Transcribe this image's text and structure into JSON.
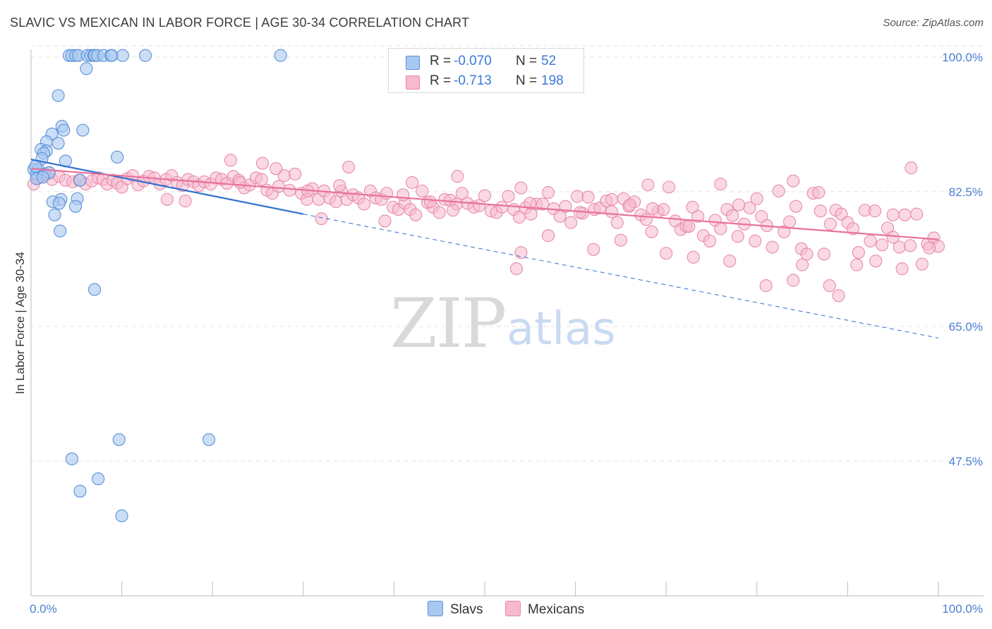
{
  "title": "SLAVIC VS MEXICAN IN LABOR FORCE | AGE 30-34 CORRELATION CHART",
  "source": "Source: ZipAtlas.com",
  "watermark": {
    "zip": "ZIP",
    "atlas": "atlas"
  },
  "colors": {
    "slavs_fill": "#a9c8f0",
    "slavs_stroke": "#5b91d9",
    "slavs_line": "#2f6fd0",
    "mexicans_fill": "#f6b9cd",
    "mexicans_stroke": "#e88aa9",
    "mexicans_line": "#e8719b",
    "tick_text": "#4a7fd4",
    "grid": "#e3e3e3"
  },
  "legend": {
    "rows": [
      {
        "r_label": "R =",
        "r_value": "-0.070",
        "n_label": "N =",
        "n_value": "52"
      },
      {
        "r_label": "R =",
        "r_value": "-0.713",
        "n_label": "N =",
        "n_value": "198"
      }
    ]
  },
  "bottom_legend": {
    "slavs": "Slavs",
    "mexicans": "Mexicans"
  },
  "chart_data": {
    "type": "scatter",
    "title": "SLAVIC VS MEXICAN IN LABOR FORCE | AGE 30-34 CORRELATION CHART",
    "xlabel": "",
    "ylabel": "In Labor Force | Age 30-34",
    "xlim": [
      0,
      100
    ],
    "ylim": [
      30,
      101
    ],
    "x_tick_labels": [
      "0.0%",
      "100.0%"
    ],
    "y_ticks": [
      {
        "value": 100.0,
        "label": "100.0%"
      },
      {
        "value": 82.5,
        "label": "82.5%"
      },
      {
        "value": 65.0,
        "label": "65.0%"
      },
      {
        "value": 47.5,
        "label": "47.5%"
      }
    ],
    "series": [
      {
        "name": "Slavs",
        "r": -0.07,
        "n": 52,
        "trend": {
          "x0": 0,
          "y0": 86.7,
          "x1": 30,
          "y1": 79.6,
          "dashed_to_x": 100,
          "dashed_to_y": 63.5
        },
        "points": [
          [
            4.2,
            100.2
          ],
          [
            4.5,
            100.2
          ],
          [
            4.9,
            100.2
          ],
          [
            5.2,
            100.2
          ],
          [
            6.2,
            100.2
          ],
          [
            6.6,
            100.2
          ],
          [
            6.9,
            100.2
          ],
          [
            7.0,
            100.2
          ],
          [
            7.3,
            100.2
          ],
          [
            8.0,
            100.2
          ],
          [
            8.8,
            100.2
          ],
          [
            8.9,
            100.2
          ],
          [
            10.1,
            100.2
          ],
          [
            12.6,
            100.2
          ],
          [
            27.5,
            100.2
          ],
          [
            6.1,
            98.5
          ],
          [
            3.0,
            95.0
          ],
          [
            3.4,
            91.0
          ],
          [
            2.3,
            90.0
          ],
          [
            3.6,
            90.5
          ],
          [
            5.7,
            90.5
          ],
          [
            1.7,
            89.0
          ],
          [
            3.0,
            88.8
          ],
          [
            1.1,
            88.0
          ],
          [
            1.7,
            87.8
          ],
          [
            1.4,
            87.5
          ],
          [
            1.2,
            86.8
          ],
          [
            3.8,
            86.5
          ],
          [
            9.5,
            87.0
          ],
          [
            0.3,
            85.4
          ],
          [
            0.8,
            85.4
          ],
          [
            0.6,
            84.8
          ],
          [
            1.5,
            84.8
          ],
          [
            2.0,
            85.0
          ],
          [
            0.6,
            84.2
          ],
          [
            1.3,
            84.4
          ],
          [
            5.4,
            84.0
          ],
          [
            3.3,
            81.5
          ],
          [
            5.1,
            81.6
          ],
          [
            2.4,
            81.2
          ],
          [
            3.1,
            81.0
          ],
          [
            4.9,
            80.6
          ],
          [
            2.6,
            79.5
          ],
          [
            3.2,
            77.4
          ],
          [
            7.0,
            69.8
          ],
          [
            9.7,
            50.3
          ],
          [
            19.6,
            50.3
          ],
          [
            4.5,
            47.8
          ],
          [
            7.4,
            45.2
          ],
          [
            5.4,
            43.6
          ],
          [
            10.0,
            40.4
          ],
          [
            0.5,
            85.8
          ]
        ]
      },
      {
        "name": "Mexicans",
        "r": -0.713,
        "n": 198,
        "trend": {
          "x0": 0,
          "y0": 85.5,
          "x1": 100,
          "y1": 76.3
        },
        "points": [
          [
            0.3,
            83.5
          ],
          [
            0.8,
            84.3
          ],
          [
            1.5,
            84.6
          ],
          [
            2.0,
            84.9
          ],
          [
            2.3,
            84.1
          ],
          [
            3.1,
            84.5
          ],
          [
            3.8,
            84.0
          ],
          [
            4.6,
            83.8
          ],
          [
            5.3,
            84.0
          ],
          [
            6.0,
            83.5
          ],
          [
            6.7,
            83.9
          ],
          [
            7.4,
            84.3
          ],
          [
            7.9,
            84.1
          ],
          [
            8.4,
            83.5
          ],
          [
            9.0,
            84.0
          ],
          [
            9.5,
            83.6
          ],
          [
            10.0,
            83.1
          ],
          [
            10.6,
            84.2
          ],
          [
            11.2,
            84.6
          ],
          [
            11.8,
            83.4
          ],
          [
            12.4,
            83.9
          ],
          [
            13.0,
            84.5
          ],
          [
            13.6,
            84.3
          ],
          [
            14.2,
            83.5
          ],
          [
            14.9,
            84.1
          ],
          [
            15.5,
            84.6
          ],
          [
            16.1,
            83.7
          ],
          [
            16.7,
            83.3
          ],
          [
            17.3,
            84.1
          ],
          [
            17.9,
            83.8
          ],
          [
            18.5,
            83.3
          ],
          [
            19.1,
            83.8
          ],
          [
            19.8,
            83.5
          ],
          [
            20.4,
            84.3
          ],
          [
            21.0,
            84.1
          ],
          [
            21.6,
            83.6
          ],
          [
            22.3,
            84.5
          ],
          [
            22.9,
            84.0
          ],
          [
            23.5,
            83.0
          ],
          [
            24.1,
            83.4
          ],
          [
            24.8,
            84.3
          ],
          [
            25.4,
            84.1
          ],
          [
            26.0,
            82.7
          ],
          [
            26.6,
            82.3
          ],
          [
            27.3,
            83.2
          ],
          [
            27.9,
            84.6
          ],
          [
            28.5,
            82.7
          ],
          [
            29.1,
            84.8
          ],
          [
            29.8,
            82.3
          ],
          [
            30.4,
            81.5
          ],
          [
            31.0,
            82.9
          ],
          [
            31.7,
            81.5
          ],
          [
            32.3,
            82.6
          ],
          [
            32.9,
            81.7
          ],
          [
            33.6,
            81.2
          ],
          [
            34.2,
            82.6
          ],
          [
            34.8,
            81.5
          ],
          [
            35.5,
            82.1
          ],
          [
            36.1,
            81.7
          ],
          [
            36.7,
            80.9
          ],
          [
            37.4,
            82.6
          ],
          [
            38.0,
            81.7
          ],
          [
            38.6,
            81.5
          ],
          [
            39.2,
            82.3
          ],
          [
            39.9,
            80.5
          ],
          [
            40.5,
            80.2
          ],
          [
            41.2,
            81.0
          ],
          [
            41.8,
            80.2
          ],
          [
            42.4,
            79.5
          ],
          [
            43.1,
            82.6
          ],
          [
            43.7,
            81.1
          ],
          [
            44.3,
            80.5
          ],
          [
            45.0,
            79.8
          ],
          [
            45.6,
            81.5
          ],
          [
            46.2,
            81.4
          ],
          [
            46.9,
            80.9
          ],
          [
            47.5,
            82.3
          ],
          [
            48.1,
            81.0
          ],
          [
            48.8,
            80.5
          ],
          [
            49.4,
            80.7
          ],
          [
            50.0,
            82.0
          ],
          [
            50.7,
            80.0
          ],
          [
            51.3,
            79.8
          ],
          [
            51.9,
            80.5
          ],
          [
            52.6,
            81.9
          ],
          [
            53.2,
            80.2
          ],
          [
            53.8,
            79.2
          ],
          [
            54.5,
            80.4
          ],
          [
            55.1,
            79.6
          ],
          [
            55.7,
            80.9
          ],
          [
            56.4,
            80.9
          ],
          [
            57.0,
            82.4
          ],
          [
            57.6,
            80.3
          ],
          [
            58.3,
            79.3
          ],
          [
            58.9,
            80.6
          ],
          [
            59.5,
            78.5
          ],
          [
            60.2,
            81.9
          ],
          [
            60.8,
            79.7
          ],
          [
            61.4,
            81.8
          ],
          [
            62.1,
            80.2
          ],
          [
            62.7,
            80.4
          ],
          [
            63.4,
            81.3
          ],
          [
            64.0,
            79.9
          ],
          [
            64.6,
            78.5
          ],
          [
            65.3,
            81.6
          ],
          [
            65.9,
            80.6
          ],
          [
            66.5,
            81.2
          ],
          [
            67.2,
            79.5
          ],
          [
            67.8,
            78.9
          ],
          [
            68.4,
            77.3
          ],
          [
            69.1,
            79.9
          ],
          [
            69.7,
            80.2
          ],
          [
            70.3,
            83.1
          ],
          [
            71.0,
            78.7
          ],
          [
            71.6,
            77.6
          ],
          [
            72.2,
            78.0
          ],
          [
            72.9,
            80.5
          ],
          [
            73.5,
            79.3
          ],
          [
            74.1,
            76.8
          ],
          [
            74.8,
            76.1
          ],
          [
            75.4,
            78.8
          ],
          [
            76.0,
            77.7
          ],
          [
            76.7,
            80.2
          ],
          [
            77.3,
            79.4
          ],
          [
            77.9,
            76.7
          ],
          [
            78.6,
            78.3
          ],
          [
            79.2,
            80.4
          ],
          [
            79.8,
            76.1
          ],
          [
            80.5,
            79.3
          ],
          [
            81.1,
            78.1
          ],
          [
            81.7,
            75.3
          ],
          [
            82.4,
            82.6
          ],
          [
            83.0,
            77.3
          ],
          [
            83.6,
            78.6
          ],
          [
            84.3,
            80.6
          ],
          [
            84.9,
            75.1
          ],
          [
            85.5,
            74.4
          ],
          [
            86.2,
            82.3
          ],
          [
            86.8,
            82.4
          ],
          [
            87.4,
            74.4
          ],
          [
            88.1,
            78.3
          ],
          [
            88.7,
            80.1
          ],
          [
            89.3,
            79.6
          ],
          [
            90.0,
            78.5
          ],
          [
            90.6,
            77.7
          ],
          [
            91.2,
            74.6
          ],
          [
            91.9,
            80.1
          ],
          [
            92.5,
            76.1
          ],
          [
            93.1,
            73.5
          ],
          [
            93.8,
            75.6
          ],
          [
            94.4,
            77.8
          ],
          [
            95.0,
            76.6
          ],
          [
            95.7,
            75.3
          ],
          [
            96.3,
            79.5
          ],
          [
            96.9,
            75.5
          ],
          [
            97.6,
            79.6
          ],
          [
            98.2,
            73.1
          ],
          [
            98.8,
            75.7
          ],
          [
            99.5,
            76.5
          ],
          [
            100.0,
            75.4
          ],
          [
            22.0,
            86.6
          ],
          [
            25.5,
            86.2
          ],
          [
            27.0,
            85.5
          ],
          [
            35.0,
            85.7
          ],
          [
            47.0,
            84.5
          ],
          [
            68.0,
            83.4
          ],
          [
            76.0,
            83.5
          ],
          [
            97.0,
            85.6
          ],
          [
            84.0,
            83.9
          ],
          [
            54.0,
            83.0
          ],
          [
            42.0,
            83.7
          ],
          [
            34.0,
            83.3
          ],
          [
            15.0,
            81.5
          ],
          [
            17.0,
            81.3
          ],
          [
            32.0,
            79.0
          ],
          [
            44.0,
            81.2
          ],
          [
            65.0,
            76.2
          ],
          [
            70.0,
            74.5
          ],
          [
            77.0,
            73.5
          ],
          [
            81.0,
            70.3
          ],
          [
            88.0,
            70.3
          ],
          [
            96.0,
            72.5
          ],
          [
            91.0,
            73.0
          ],
          [
            95.0,
            79.5
          ],
          [
            84.0,
            71.0
          ],
          [
            85.0,
            73.0
          ],
          [
            89.0,
            69.0
          ],
          [
            57.0,
            76.8
          ],
          [
            62.0,
            75.0
          ],
          [
            54.0,
            74.6
          ],
          [
            53.5,
            72.5
          ],
          [
            73.0,
            74.0
          ],
          [
            78.0,
            80.8
          ],
          [
            64.0,
            81.5
          ],
          [
            93.0,
            80.0
          ],
          [
            99.0,
            75.2
          ],
          [
            23.0,
            83.7
          ],
          [
            30.5,
            82.6
          ],
          [
            60.5,
            79.8
          ],
          [
            66.0,
            80.8
          ],
          [
            80.0,
            81.6
          ],
          [
            87.0,
            80.0
          ],
          [
            46.5,
            80.1
          ],
          [
            41.0,
            82.1
          ],
          [
            39.0,
            78.7
          ],
          [
            55.0,
            81.0
          ],
          [
            68.5,
            80.3
          ],
          [
            72.5,
            78.0
          ]
        ]
      }
    ]
  }
}
